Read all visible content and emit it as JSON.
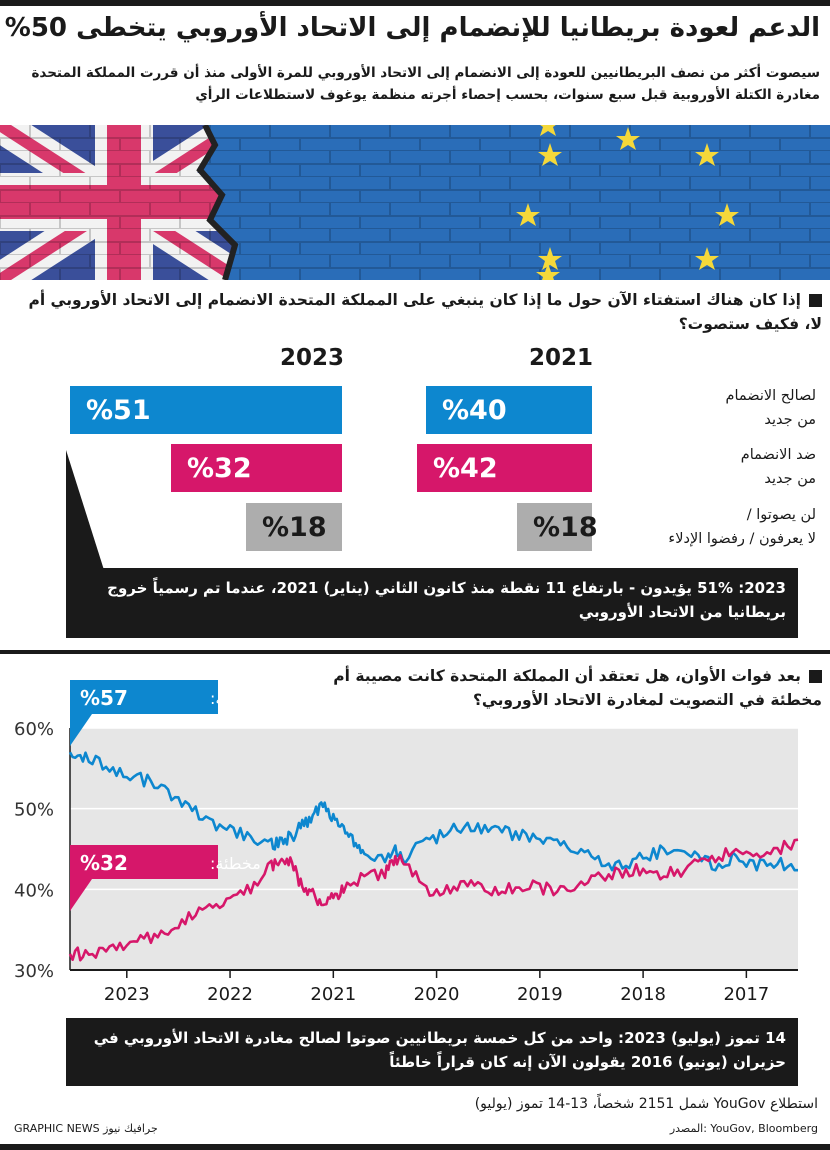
{
  "title": "الدعم لعودة بريطانيا للإنضمام إلى الاتحاد الأوروبي يتخطى 50%",
  "subtitle": "سيصوت أكثر من نصف البريطانيين للعودة إلى الانضمام إلى الاتحاد الأوروبي للمرة الأولى منذ أن قررت المملكة المتحدة مغادرة الكتلة الأوروبية قبل سبع سنوات، بحسب إحصاء أجرته منظمة يوغوف لاستطلاعات الرأي",
  "colors": {
    "blue": "#0d87cf",
    "pink": "#d6176a",
    "grey": "#adadad",
    "dark": "#1a1a1a"
  },
  "question1": "إذا كان هناك استفتاء الآن حول ما إذا كان ينبغي على المملكة المتحدة الانضمام إلى الاتحاد الأوروبي أم لا، فكيف ستصوت؟",
  "question2": "بعد فوات الأوان، هل تعتقد أن المملكة المتحدة كانت مصيبة أم مخطئة في التصويت لمغادرة الاتحاد الأوروبي؟",
  "note1": "2023: 51% يؤيدون - بارتفاع 11 نقطة منذ كانون الثاني (يناير) 2021، عندما تم رسمياً خروج بريطانيا من الاتحاد الأوروبي",
  "note2": "14 تموز (يوليو) 2023: واحد من كل خمسة بريطانيين صوتوا لصالح مغادرة الاتحاد الأوروبي في حزيران (يونيو) 2016 يقولون الآن إنه كان قراراً خاطئاً",
  "footer": {
    "poll": "استطلاع YouGov شمل 2151 شخصاً، 13-14 تموز (يوليو)",
    "source": "المصدر: YouGov, Bloomberg",
    "credit": "GRAPHIC NEWS جرافيك نيوز"
  },
  "chart_data": [
    {
      "type": "bar",
      "title": "إذا كان هناك استفتاء الآن حول ما إذا كان ينبغي على المملكة المتحدة الانضمام إلى الاتحاد الأوروبي أم لا، فكيف ستصوت؟",
      "categories": [
        "لصالح الانضمام من جديد",
        "ضد الانضمام من جديد",
        "لن يصوتوا / لا يعرفون / رفضوا الإدلاء"
      ],
      "category_lines": [
        [
          "لصالح الانضمام",
          "من جديد"
        ],
        [
          "ضد الانضمام",
          "من جديد"
        ],
        [
          "لن يصوتوا /",
          "لا يعرفون / رفضوا الإدلاء"
        ]
      ],
      "series": [
        {
          "name": "2021",
          "values": [
            40,
            42,
            18
          ],
          "labels": [
            "%40",
            "%42",
            "%18"
          ]
        },
        {
          "name": "2023",
          "values": [
            51,
            32,
            18
          ],
          "labels": [
            "%51",
            "%32",
            "%18"
          ]
        }
      ],
      "ylim": [
        0,
        51
      ]
    },
    {
      "type": "line",
      "title": "بعد فوات الأوان، هل تعتقد أن المملكة المتحدة كانت مصيبة أم مخطئة في التصويت لمغادرة الاتحاد الأوروبي؟",
      "x_range": [
        2016.5,
        2023.55
      ],
      "x_ticks": [
        "2017",
        "2018",
        "2019",
        "2020",
        "2021",
        "2022",
        "2023"
      ],
      "x_tick_values": [
        2017,
        2018,
        2019,
        2020,
        2021,
        2022,
        2023
      ],
      "ylim": [
        30,
        60
      ],
      "y_ticks": [
        "30%",
        "40%",
        "50%",
        "60%"
      ],
      "y_tick_values": [
        30,
        40,
        50,
        60
      ],
      "grid": true,
      "series": [
        {
          "name": "مصيبة",
          "label": "مصيبة:",
          "final_label": "%57",
          "color": "#0d87cf",
          "points": [
            [
              2016.5,
              42
            ],
            [
              2016.7,
              43.5
            ],
            [
              2016.9,
              43
            ],
            [
              2017.1,
              44
            ],
            [
              2017.3,
              43
            ],
            [
              2017.5,
              44
            ],
            [
              2017.7,
              45
            ],
            [
              2017.9,
              44.5
            ],
            [
              2018.1,
              43.5
            ],
            [
              2018.3,
              43
            ],
            [
              2018.5,
              44
            ],
            [
              2018.7,
              45
            ],
            [
              2018.9,
              46
            ],
            [
              2019.1,
              46.5
            ],
            [
              2019.3,
              47
            ],
            [
              2019.5,
              47.5
            ],
            [
              2019.7,
              48
            ],
            [
              2019.9,
              47
            ],
            [
              2020.1,
              46
            ],
            [
              2020.3,
              44
            ],
            [
              2020.4,
              45
            ],
            [
              2020.5,
              44
            ],
            [
              2020.7,
              44.5
            ],
            [
              2020.8,
              46
            ],
            [
              2020.9,
              48
            ],
            [
              2021.0,
              49
            ],
            [
              2021.1,
              50.5
            ],
            [
              2021.2,
              49
            ],
            [
              2021.3,
              48
            ],
            [
              2021.4,
              46.5
            ],
            [
              2021.5,
              46
            ],
            [
              2021.6,
              45.5
            ],
            [
              2021.8,
              46.5
            ],
            [
              2022.0,
              47.5
            ],
            [
              2022.2,
              48
            ],
            [
              2022.4,
              50.5
            ],
            [
              2022.6,
              52
            ],
            [
              2022.8,
              53.5
            ],
            [
              2023.0,
              54
            ],
            [
              2023.2,
              55
            ],
            [
              2023.4,
              56.5
            ],
            [
              2023.55,
              57
            ]
          ]
        },
        {
          "name": "مخطئة",
          "label": "مخطئة:",
          "final_label": "%32",
          "color": "#d6176a",
          "points": [
            [
              2016.5,
              46
            ],
            [
              2016.7,
              45
            ],
            [
              2016.9,
              44
            ],
            [
              2017.1,
              45
            ],
            [
              2017.3,
              44
            ],
            [
              2017.5,
              43
            ],
            [
              2017.7,
              42
            ],
            [
              2017.9,
              42
            ],
            [
              2018.1,
              42.5
            ],
            [
              2018.3,
              42
            ],
            [
              2018.5,
              41
            ],
            [
              2018.7,
              40.5
            ],
            [
              2018.9,
              40
            ],
            [
              2019.1,
              40.5
            ],
            [
              2019.3,
              40
            ],
            [
              2019.5,
              40
            ],
            [
              2019.7,
              40.5
            ],
            [
              2019.9,
              40
            ],
            [
              2020.1,
              40
            ],
            [
              2020.3,
              43
            ],
            [
              2020.4,
              44
            ],
            [
              2020.5,
              42
            ],
            [
              2020.7,
              41.5
            ],
            [
              2020.9,
              40
            ],
            [
              2021.0,
              39
            ],
            [
              2021.1,
              38
            ],
            [
              2021.2,
              39.5
            ],
            [
              2021.3,
              40
            ],
            [
              2021.4,
              43.5
            ],
            [
              2021.5,
              44
            ],
            [
              2021.6,
              43
            ],
            [
              2021.8,
              40
            ],
            [
              2022.0,
              38.5
            ],
            [
              2022.2,
              37.5
            ],
            [
              2022.4,
              36.5
            ],
            [
              2022.6,
              35
            ],
            [
              2022.8,
              34
            ],
            [
              2023.0,
              33
            ],
            [
              2023.2,
              32.5
            ],
            [
              2023.4,
              32
            ],
            [
              2023.55,
              32
            ]
          ]
        }
      ]
    }
  ]
}
